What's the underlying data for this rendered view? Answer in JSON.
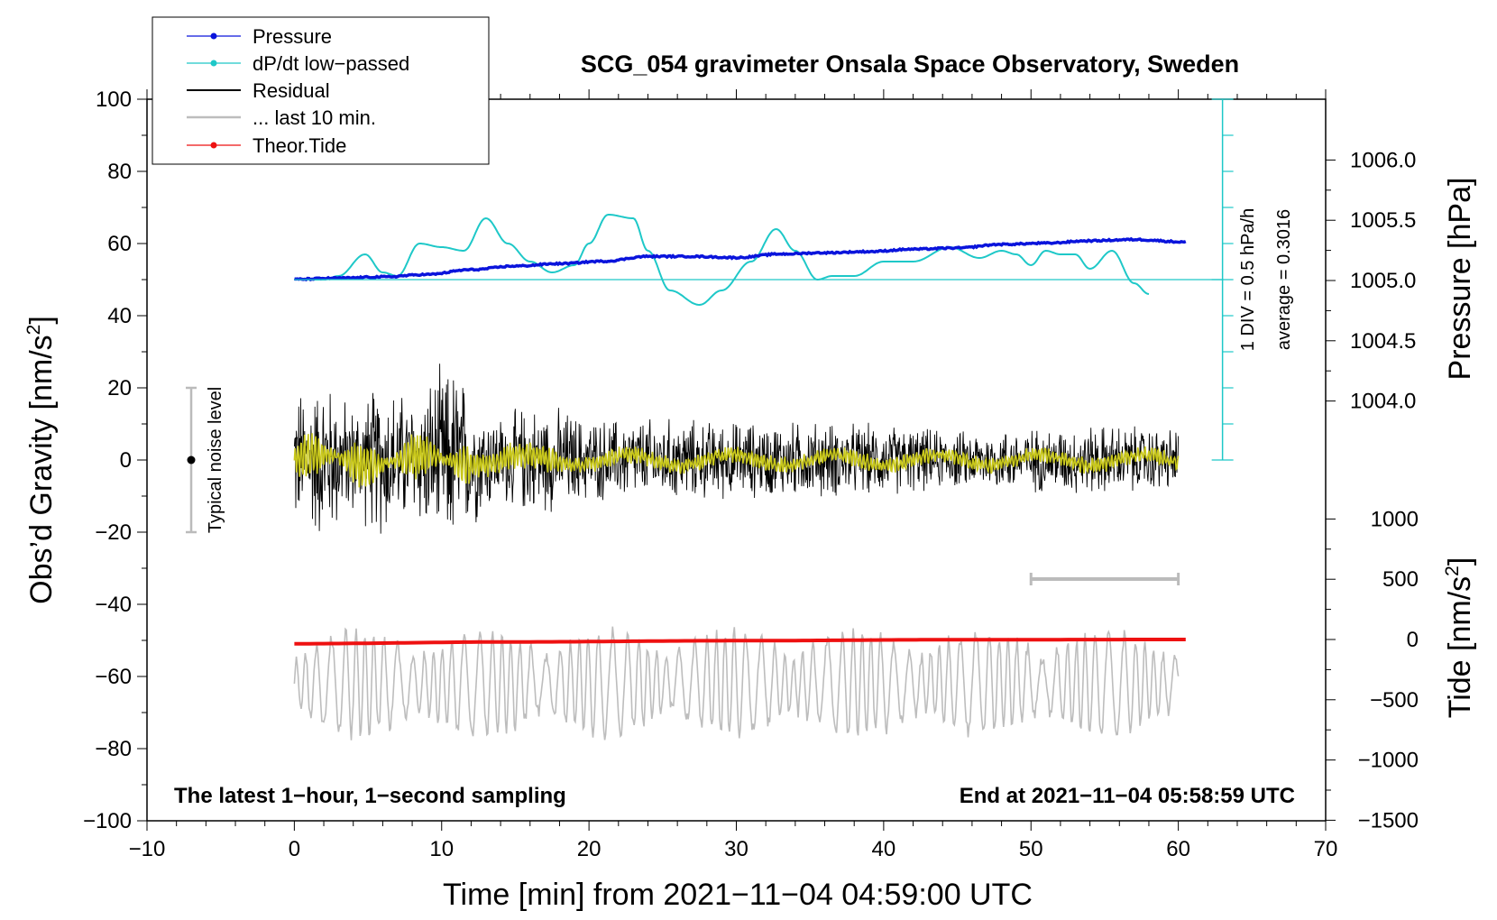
{
  "chart_data": {
    "type": "line",
    "title": "SCG_054 gravimeter Onsala Space Observatory, Sweden",
    "xlabel": "Time [min] from 2021−11−04 04:59:00 UTC",
    "ylabel_left": "Obs’d Gravity [nm/s",
    "ylabel_right_pressure": "Pressure [hPa]",
    "ylabel_right_tide": "Tide [nm/s",
    "xlim": [
      -10,
      70
    ],
    "ylim": [
      -100,
      100
    ],
    "pressure_lim": [
      1004.0,
      1006.0
    ],
    "tide_lim": [
      -1500,
      1000
    ],
    "x_ticks": [
      {
        "value": -10,
        "label": "−10"
      },
      {
        "value": 0,
        "label": "0"
      },
      {
        "value": 10,
        "label": "10"
      },
      {
        "value": 20,
        "label": "20"
      },
      {
        "value": 30,
        "label": "30"
      },
      {
        "value": 40,
        "label": "40"
      },
      {
        "value": 50,
        "label": "50"
      },
      {
        "value": 60,
        "label": "60"
      },
      {
        "value": 70,
        "label": "70"
      }
    ],
    "y_ticks": [
      {
        "value": 100,
        "label": "100"
      },
      {
        "value": 80,
        "label": "80"
      },
      {
        "value": 60,
        "label": "60"
      },
      {
        "value": 40,
        "label": "40"
      },
      {
        "value": 20,
        "label": "20"
      },
      {
        "value": 0,
        "label": "0"
      },
      {
        "value": -20,
        "label": "−20"
      },
      {
        "value": -40,
        "label": "−40"
      },
      {
        "value": -60,
        "label": "−60"
      },
      {
        "value": -80,
        "label": "−80"
      },
      {
        "value": -100,
        "label": "−100"
      }
    ],
    "pressure_ticks": [
      {
        "value": 1006.0,
        "label": "1006.0"
      },
      {
        "value": 1005.5,
        "label": "1005.5"
      },
      {
        "value": 1005.0,
        "label": "1005.0"
      },
      {
        "value": 1004.5,
        "label": "1004.5"
      },
      {
        "value": 1004.0,
        "label": "1004.0"
      }
    ],
    "tide_ticks": [
      {
        "value": 1000,
        "label": "1000"
      },
      {
        "value": 500,
        "label": "500"
      },
      {
        "value": 0,
        "label": "0"
      },
      {
        "value": -500,
        "label": "−500"
      },
      {
        "value": -1000,
        "label": "−1000"
      },
      {
        "value": -1500,
        "label": "−1500"
      }
    ],
    "legend": [
      {
        "name": "Pressure",
        "color": "#0a14dc",
        "marker": true
      },
      {
        "name": "dP/dt low−passed",
        "color": "#1ec8c8",
        "marker": true
      },
      {
        "name": "Residual",
        "color": "#000000",
        "marker": false
      },
      {
        "name": "... last 10 min.",
        "color": "#bdbdbd",
        "marker": false
      },
      {
        "name": "Theor.Tide",
        "color": "#ee1111",
        "marker": true
      }
    ],
    "series": [
      {
        "name": "Pressure",
        "color": "#0a14dc",
        "axis": "pressure",
        "x": [
          0,
          3,
          6,
          9,
          12,
          15,
          18,
          21,
          24,
          27,
          30,
          33,
          36,
          39,
          42,
          45,
          48,
          51,
          54,
          57,
          60.5
        ],
        "values": [
          1005.01,
          1005.02,
          1005.03,
          1005.05,
          1005.09,
          1005.12,
          1005.14,
          1005.16,
          1005.2,
          1005.2,
          1005.19,
          1005.22,
          1005.23,
          1005.24,
          1005.26,
          1005.27,
          1005.3,
          1005.31,
          1005.33,
          1005.34,
          1005.32
        ]
      },
      {
        "name": "dP/dt low−passed",
        "color": "#1ec8c8",
        "axis": "gravity",
        "x": [
          0,
          2,
          3,
          4.8,
          6,
          7,
          8.5,
          10,
          11.5,
          13,
          14.5,
          16,
          17.5,
          19,
          20,
          21.3,
          23,
          24,
          25.5,
          27.5,
          29,
          31,
          32.7,
          34,
          35.5,
          36.5,
          38,
          40,
          42,
          44.5,
          46.5,
          48,
          49,
          50,
          51,
          52,
          53,
          54,
          55.5,
          57,
          58
        ],
        "values": [
          50,
          50,
          51,
          57,
          52,
          51,
          60,
          59,
          58,
          67,
          60,
          55,
          52,
          54,
          60,
          68,
          67,
          58,
          47,
          43,
          47,
          55,
          64,
          58,
          50,
          51,
          51,
          55,
          55,
          59,
          56,
          58,
          57,
          54,
          58,
          57,
          57,
          53,
          58,
          49,
          46
        ]
      },
      {
        "name": "Residual",
        "color": "#000000",
        "axis": "gravity",
        "x": [
          0,
          60
        ],
        "values": [
          0,
          0
        ],
        "envelope": {
          "x": [
            0,
            2,
            4,
            6,
            8,
            10,
            11,
            12,
            14,
            16,
            18,
            20,
            24,
            30,
            35,
            40,
            45,
            50,
            55,
            60
          ],
          "amplitude": [
            22,
            25,
            18,
            24,
            20,
            28,
            30,
            20,
            14,
            17,
            16,
            13,
            13,
            12,
            12,
            11,
            9,
            10,
            11,
            10
          ]
        }
      },
      {
        "name": "... last 10 min.",
        "color": "#bdbdbd",
        "axis": "gravity",
        "x": [
          0,
          60
        ],
        "values": [
          -62,
          -62
        ]
      },
      {
        "name": "Theor.Tide",
        "color": "#ee1111",
        "axis": "tide",
        "x": [
          0,
          15,
          30,
          45,
          60.5
        ],
        "values": [
          -35,
          -20,
          -10,
          -2,
          0
        ]
      },
      {
        "name": "Residual low−passed",
        "color": "#c9c81c",
        "axis": "gravity",
        "x": [
          0,
          60
        ],
        "values": [
          0,
          0
        ]
      }
    ],
    "dpdt_scale": {
      "baseline": 50,
      "top": 100,
      "bottom": 0,
      "x": 63,
      "divisions": 10,
      "label": "1 DIV = 0.5 hPa/h",
      "average_label": "average = 0.3016"
    },
    "noise_level": {
      "x": -7,
      "center": 0,
      "low": -20,
      "high": 20,
      "label": "Typical noise level"
    },
    "tide_scalebar": {
      "x_start": 50,
      "x_end": 60,
      "y": -33
    },
    "notes": {
      "left": "The latest 1−hour, 1−second sampling",
      "right": "End at 2021−11−04 05:58:59 UTC"
    }
  }
}
